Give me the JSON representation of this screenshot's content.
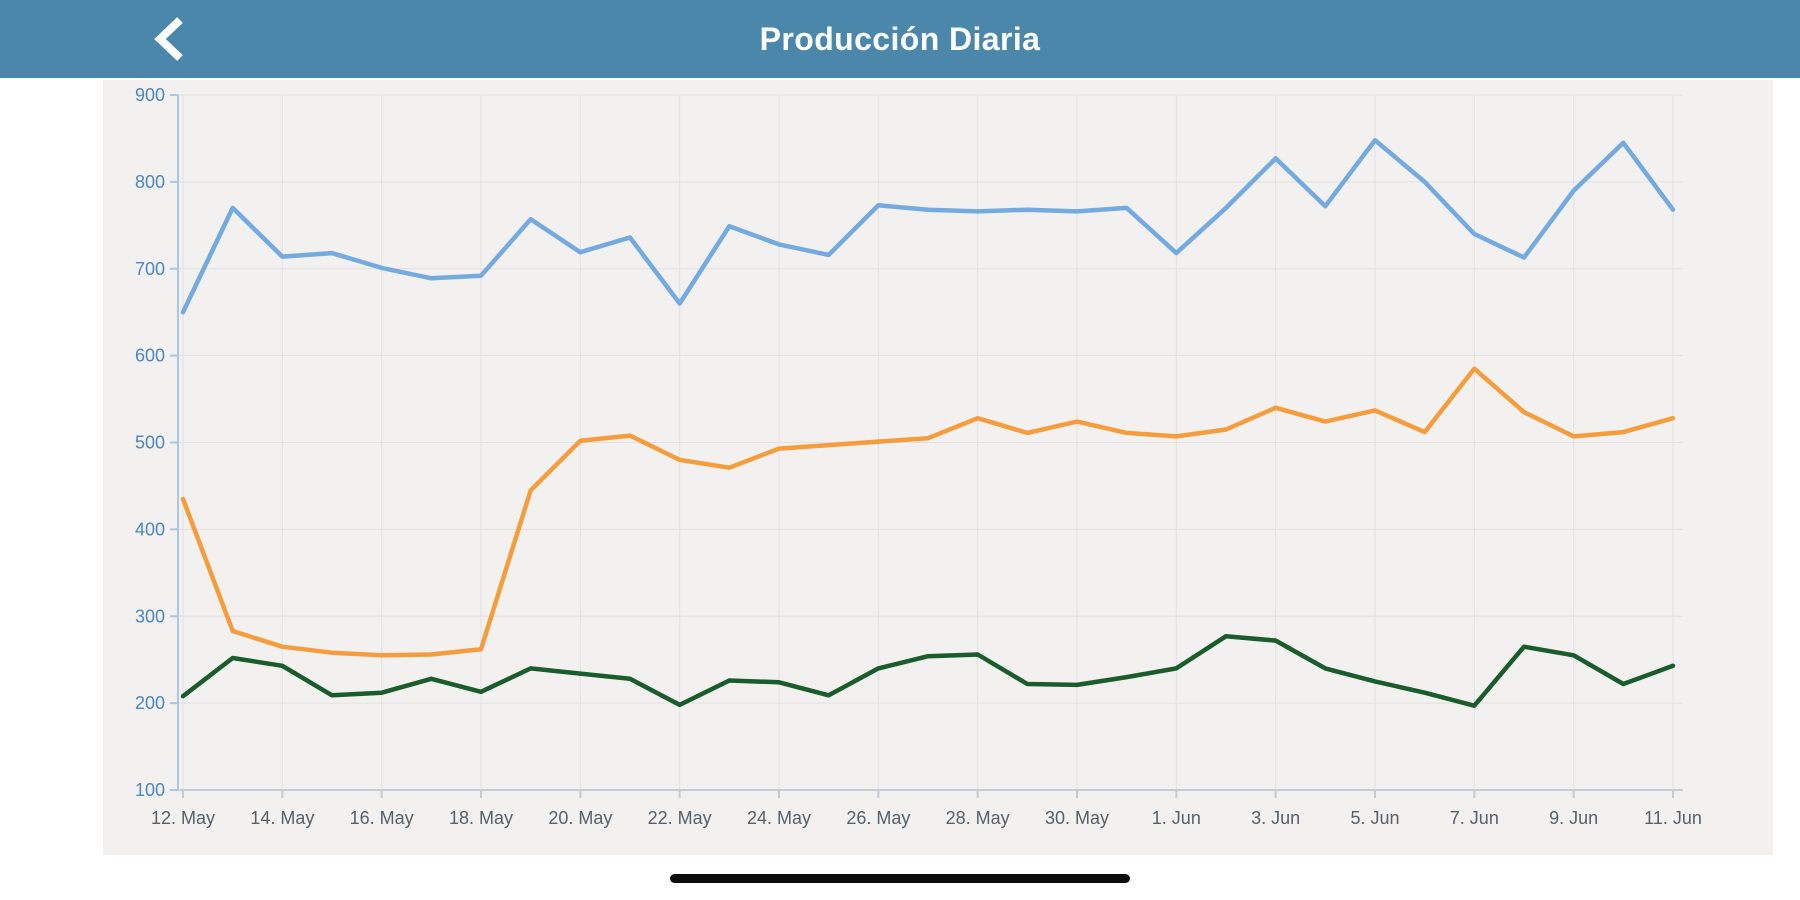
{
  "header": {
    "title": "Producción Diaria",
    "background_color": "#4a87ab",
    "back_icon": "chevron-left"
  },
  "chart_data": {
    "type": "line",
    "title": "",
    "categories": [
      "12. May",
      "13. May",
      "14. May",
      "15. May",
      "16. May",
      "17. May",
      "18. May",
      "19. May",
      "20. May",
      "21. May",
      "22. May",
      "23. May",
      "24. May",
      "25. May",
      "26. May",
      "27. May",
      "28. May",
      "29. May",
      "30. May",
      "31. May",
      "1. Jun",
      "2. Jun",
      "3. Jun",
      "4. Jun",
      "5. Jun",
      "6. Jun",
      "7. Jun",
      "8. Jun",
      "9. Jun",
      "10. Jun",
      "11. Jun"
    ],
    "x_tick_labels": [
      "12. May",
      "14. May",
      "16. May",
      "18. May",
      "20. May",
      "22. May",
      "24. May",
      "26. May",
      "28. May",
      "30. May",
      "1. Jun",
      "3. Jun",
      "5. Jun",
      "7. Jun",
      "9. Jun",
      "11. Jun"
    ],
    "y_ticks": [
      100,
      200,
      300,
      400,
      500,
      600,
      700,
      800,
      900
    ],
    "ylim": [
      100,
      900
    ],
    "grid": true,
    "legend": "none",
    "series": [
      {
        "id": "blue",
        "color": "#74aadf",
        "values": [
          650,
          770,
          714,
          718,
          701,
          689,
          692,
          757,
          719,
          736,
          660,
          749,
          728,
          716,
          773,
          768,
          766,
          768,
          766,
          770,
          718,
          770,
          827,
          772,
          848,
          800,
          740,
          713,
          790,
          845,
          768
        ]
      },
      {
        "id": "orange",
        "color": "#f59c3c",
        "values": [
          435,
          283,
          265,
          258,
          255,
          256,
          262,
          445,
          502,
          508,
          480,
          471,
          493,
          497,
          501,
          505,
          528,
          511,
          524,
          511,
          507,
          515,
          540,
          524,
          537,
          512,
          585,
          535,
          507,
          512,
          528
        ]
      },
      {
        "id": "green",
        "color": "#1a5c2b",
        "values": [
          208,
          252,
          243,
          209,
          212,
          228,
          213,
          240,
          234,
          228,
          198,
          226,
          224,
          209,
          240,
          254,
          256,
          222,
          221,
          230,
          240,
          277,
          272,
          240,
          225,
          212,
          197,
          265,
          255,
          222,
          243
        ]
      }
    ],
    "style": {
      "background": "#f2f1ef",
      "grid_color": "#e2e1df",
      "axis_color": "#a9c7e4",
      "x_axis_color": "#c3ccd4",
      "y_label_color": "#4d86c0",
      "x_label_color": "#55616b"
    }
  }
}
